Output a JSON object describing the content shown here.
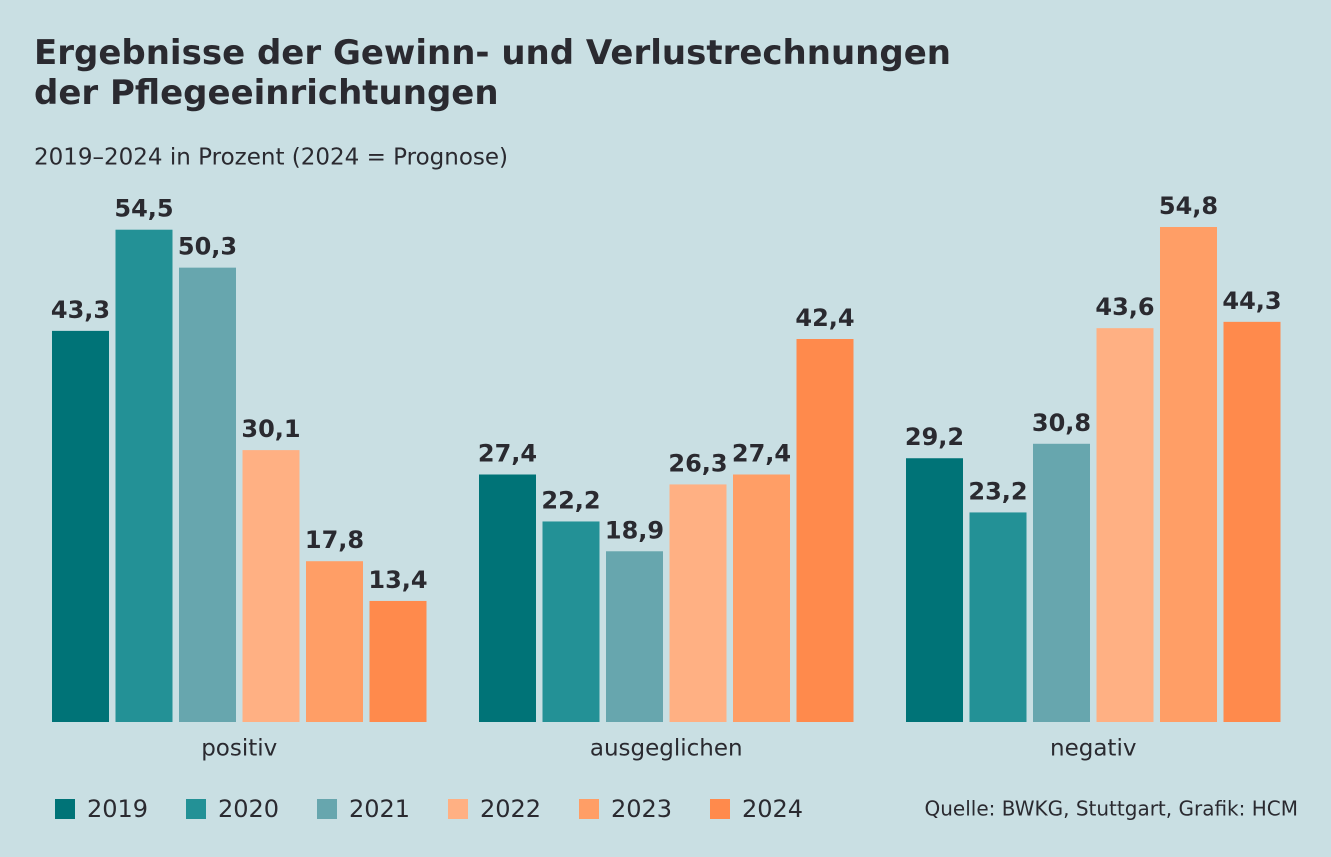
{
  "chart_data": {
    "type": "bar",
    "title": "Ergebnisse der Gewinn- und Verlustrechnungen der Pflegeeinrichtungen",
    "subtitle": "2019–2024 in Prozent (2024 = Prognose)",
    "source": "Quelle: BWKG, Stuttgart, Grafik: HCM",
    "categories": [
      "positiv",
      "ausgeglichen",
      "negativ"
    ],
    "series": [
      {
        "name": "2019",
        "color": "#007377",
        "values": [
          43.3,
          27.4,
          29.2
        ],
        "value_labels": [
          "43,3",
          "27,4",
          "29,2"
        ]
      },
      {
        "name": "2020",
        "color": "#239196",
        "values": [
          54.5,
          22.2,
          23.2
        ],
        "value_labels": [
          "54,5",
          "22,2",
          "23,2"
        ]
      },
      {
        "name": "2021",
        "color": "#67a6ae",
        "values": [
          50.3,
          18.9,
          30.8
        ],
        "value_labels": [
          "50,3",
          "18,9",
          "30,8"
        ]
      },
      {
        "name": "2022",
        "color": "#ffb083",
        "values": [
          30.1,
          26.3,
          43.6
        ],
        "value_labels": [
          "30,1",
          "26,3",
          "43,6"
        ]
      },
      {
        "name": "2023",
        "color": "#ff9e66",
        "values": [
          17.8,
          27.4,
          54.8
        ],
        "value_labels": [
          "17,8",
          "27,4",
          "54,8"
        ]
      },
      {
        "name": "2024",
        "color": "#ff8a4c",
        "values": [
          13.4,
          42.4,
          44.3
        ],
        "value_labels": [
          "13,4",
          "42,4",
          "44,3"
        ]
      }
    ]
  }
}
